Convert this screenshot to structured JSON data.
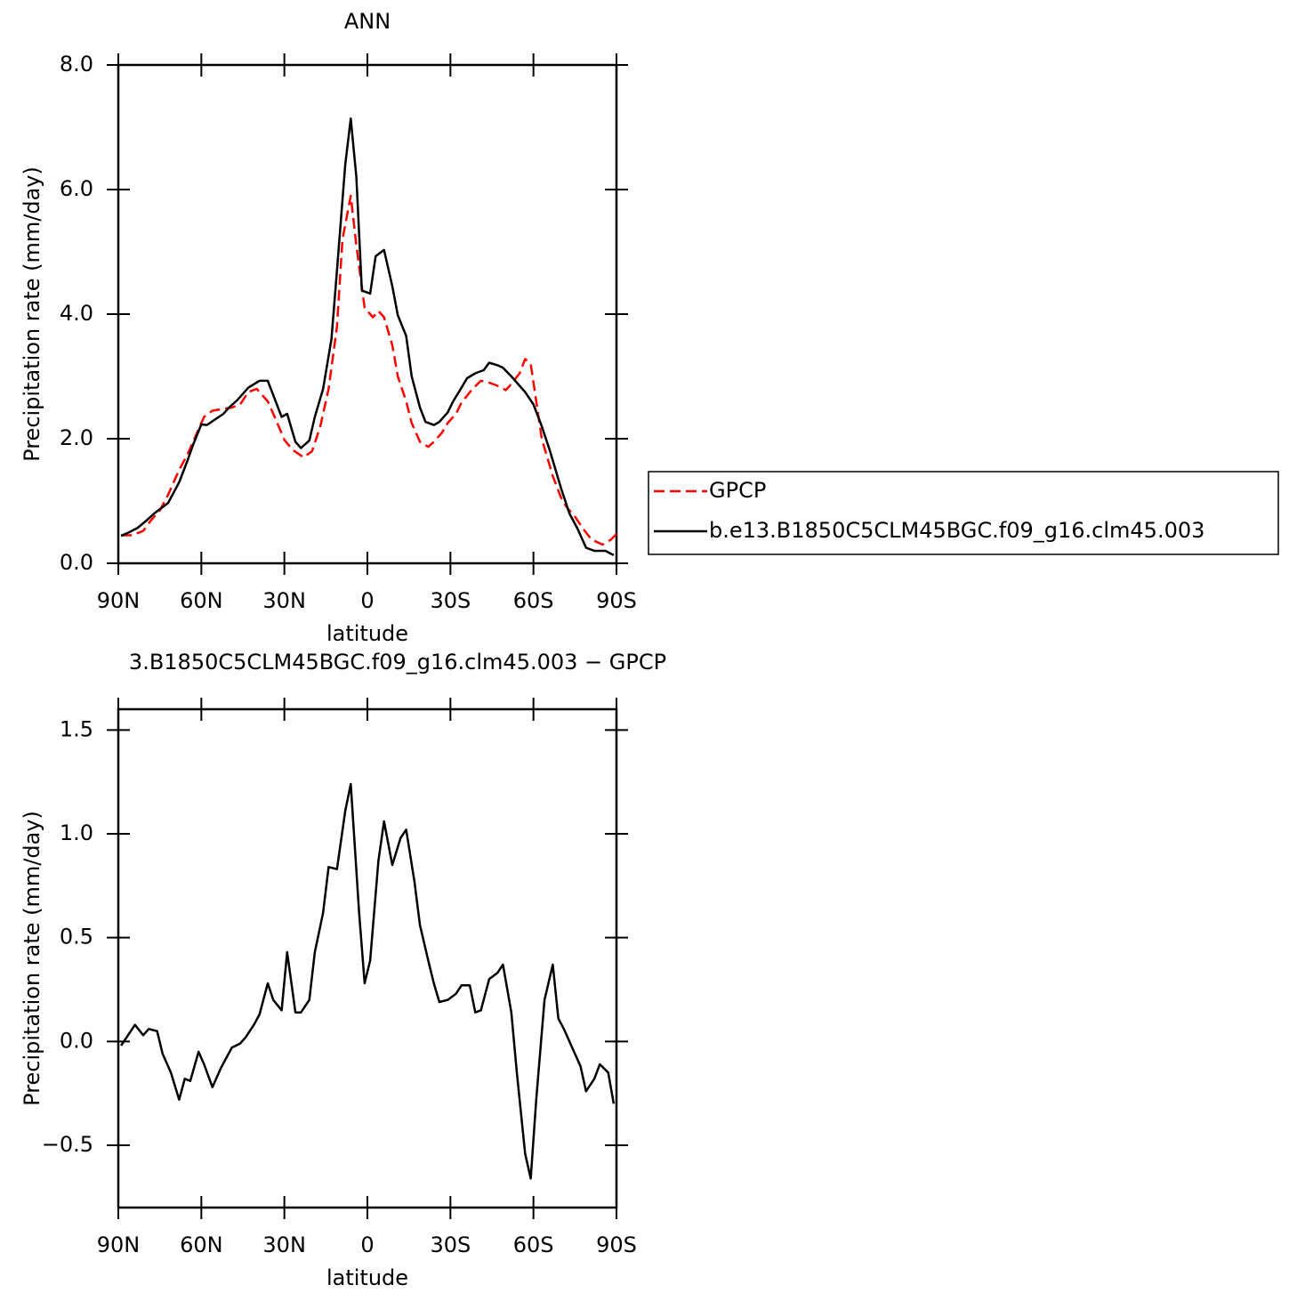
{
  "chart_data": [
    {
      "type": "line",
      "title": "ANN",
      "xlabel": "latitude",
      "ylabel": "Precipitation rate (mm/day)",
      "xlim": [
        90,
        -90
      ],
      "xticks": [
        {
          "value": 90,
          "label": "90N"
        },
        {
          "value": 60,
          "label": "60N"
        },
        {
          "value": 30,
          "label": "30N"
        },
        0,
        {
          "value": -30,
          "label": "30S"
        },
        {
          "value": -60,
          "label": "60S"
        },
        {
          "value": -90,
          "label": "90S"
        }
      ],
      "ylim": [
        0,
        8
      ],
      "yticks": [
        {
          "value": 0,
          "label": "0.0"
        },
        {
          "value": 2,
          "label": "2.0"
        },
        {
          "value": 4,
          "label": "4.0"
        },
        {
          "value": 6,
          "label": "6.0"
        },
        {
          "value": 8,
          "label": "8.0"
        }
      ],
      "legend": "right",
      "series": [
        {
          "name": "GPCP",
          "color": "#ff0000",
          "dash": true,
          "x": [
            89,
            85,
            81,
            78,
            75,
            72,
            68,
            65,
            62,
            59,
            56,
            52,
            49,
            46,
            43,
            40,
            36,
            33,
            30,
            27,
            23,
            20,
            17,
            14,
            11,
            9,
            6,
            4,
            1,
            -2,
            -4,
            -6,
            -9,
            -11,
            -14,
            -16,
            -19,
            -22,
            -24,
            -27,
            -29,
            -32,
            -34,
            -38,
            -41,
            -44,
            -47,
            -50,
            -52,
            -55,
            -57,
            -59,
            -61,
            -63,
            -67,
            -70,
            -72,
            -75,
            -78,
            -81,
            -85,
            -88,
            -90
          ],
          "values": [
            0.45,
            0.45,
            0.52,
            0.7,
            0.85,
            1.1,
            1.5,
            1.75,
            2.05,
            2.35,
            2.45,
            2.48,
            2.5,
            2.55,
            2.75,
            2.8,
            2.6,
            2.3,
            1.98,
            1.82,
            1.7,
            1.8,
            2.2,
            2.8,
            3.8,
            5.2,
            5.9,
            5.1,
            4.1,
            3.95,
            4.05,
            3.95,
            3.5,
            3.0,
            2.6,
            2.25,
            1.95,
            1.87,
            1.95,
            2.1,
            2.25,
            2.4,
            2.58,
            2.8,
            2.93,
            2.9,
            2.85,
            2.78,
            2.88,
            3.05,
            3.28,
            3.2,
            2.6,
            2.0,
            1.4,
            1.05,
            0.9,
            0.75,
            0.55,
            0.38,
            0.3,
            0.38,
            0.47
          ]
        },
        {
          "name": "b.e13.B1850C5CLM45BGC.f09_g16.clm45.003",
          "color": "#000000",
          "dash": false,
          "x": [
            89,
            86,
            83,
            80,
            77,
            72,
            68,
            65,
            63,
            60,
            58,
            56,
            52,
            50,
            47,
            43,
            39,
            36,
            31,
            29,
            26,
            24,
            21,
            19,
            16,
            13,
            11,
            8,
            6,
            4,
            2,
            -1,
            -3,
            -6,
            -9,
            -11,
            -14,
            -16,
            -19,
            -21,
            -24,
            -26,
            -29,
            -31,
            -34,
            -36,
            -39,
            -42,
            -44,
            -47,
            -49,
            -52,
            -57,
            -60,
            -63,
            -66,
            -70,
            -73,
            -76,
            -79,
            -82,
            -86,
            -89
          ],
          "values": [
            0.44,
            0.5,
            0.57,
            0.68,
            0.8,
            0.97,
            1.3,
            1.65,
            1.9,
            2.23,
            2.22,
            2.28,
            2.4,
            2.5,
            2.62,
            2.82,
            2.93,
            2.93,
            2.35,
            2.4,
            1.95,
            1.85,
            1.97,
            2.35,
            2.8,
            3.6,
            4.7,
            6.4,
            7.14,
            6.2,
            4.38,
            4.33,
            4.93,
            5.03,
            4.45,
            3.98,
            3.65,
            3.0,
            2.5,
            2.27,
            2.22,
            2.27,
            2.42,
            2.6,
            2.82,
            2.97,
            3.05,
            3.1,
            3.22,
            3.18,
            3.14,
            3.0,
            2.75,
            2.55,
            2.2,
            1.8,
            1.2,
            0.8,
            0.55,
            0.25,
            0.2,
            0.2,
            0.13
          ]
        }
      ]
    },
    {
      "type": "line",
      "title": "3.B1850C5CLM45BGC.f09_g16.clm45.003 − GPCP",
      "xlabel": "latitude",
      "ylabel": "Precipitation rate (mm/day)",
      "xlim": [
        90,
        -90
      ],
      "xticks": [
        {
          "value": 90,
          "label": "90N"
        },
        {
          "value": 60,
          "label": "60N"
        },
        {
          "value": 30,
          "label": "30N"
        },
        0,
        {
          "value": -30,
          "label": "30S"
        },
        {
          "value": -60,
          "label": "60S"
        },
        {
          "value": -90,
          "label": "90S"
        }
      ],
      "ylim": [
        -0.8,
        1.6
      ],
      "yticks": [
        {
          "value": -0.5,
          "label": "−0.5"
        },
        {
          "value": 0,
          "label": "0.0"
        },
        0.5,
        {
          "value": 1,
          "label": "1.0"
        },
        1.5
      ],
      "color": "#000000",
      "x": [
        89,
        84,
        81,
        79,
        76,
        74,
        71,
        68,
        66,
        64,
        61,
        59,
        56,
        53,
        51,
        49,
        46,
        44,
        41,
        39,
        36,
        34,
        31,
        29,
        26,
        24,
        21,
        19,
        16,
        14,
        11,
        8,
        6,
        3,
        1,
        -1,
        -4,
        -6,
        -9,
        -12,
        -14,
        -17,
        -19,
        -22,
        -24,
        -26,
        -29,
        -32,
        -34,
        -37,
        -39,
        -41,
        -44,
        -47,
        -49,
        -52,
        -54,
        -57,
        -59,
        -61,
        -64,
        -67,
        -69,
        -71,
        -74,
        -77,
        -79,
        -82,
        -84,
        -87,
        -89
      ],
      "values": [
        -0.02,
        0.08,
        0.03,
        0.06,
        0.05,
        -0.06,
        -0.15,
        -0.28,
        -0.18,
        -0.19,
        -0.05,
        -0.11,
        -0.22,
        -0.13,
        -0.08,
        -0.03,
        -0.01,
        0.02,
        0.08,
        0.13,
        0.28,
        0.2,
        0.15,
        0.43,
        0.14,
        0.14,
        0.2,
        0.43,
        0.62,
        0.84,
        0.83,
        1.11,
        1.24,
        0.62,
        0.28,
        0.39,
        0.87,
        1.06,
        0.85,
        0.98,
        1.02,
        0.77,
        0.56,
        0.39,
        0.28,
        0.19,
        0.2,
        0.23,
        0.27,
        0.27,
        0.14,
        0.15,
        0.3,
        0.33,
        0.37,
        0.14,
        -0.15,
        -0.54,
        -0.66,
        -0.28,
        0.2,
        0.37,
        0.11,
        0.06,
        -0.03,
        -0.12,
        -0.24,
        -0.18,
        -0.11,
        -0.15,
        -0.3
      ]
    }
  ]
}
